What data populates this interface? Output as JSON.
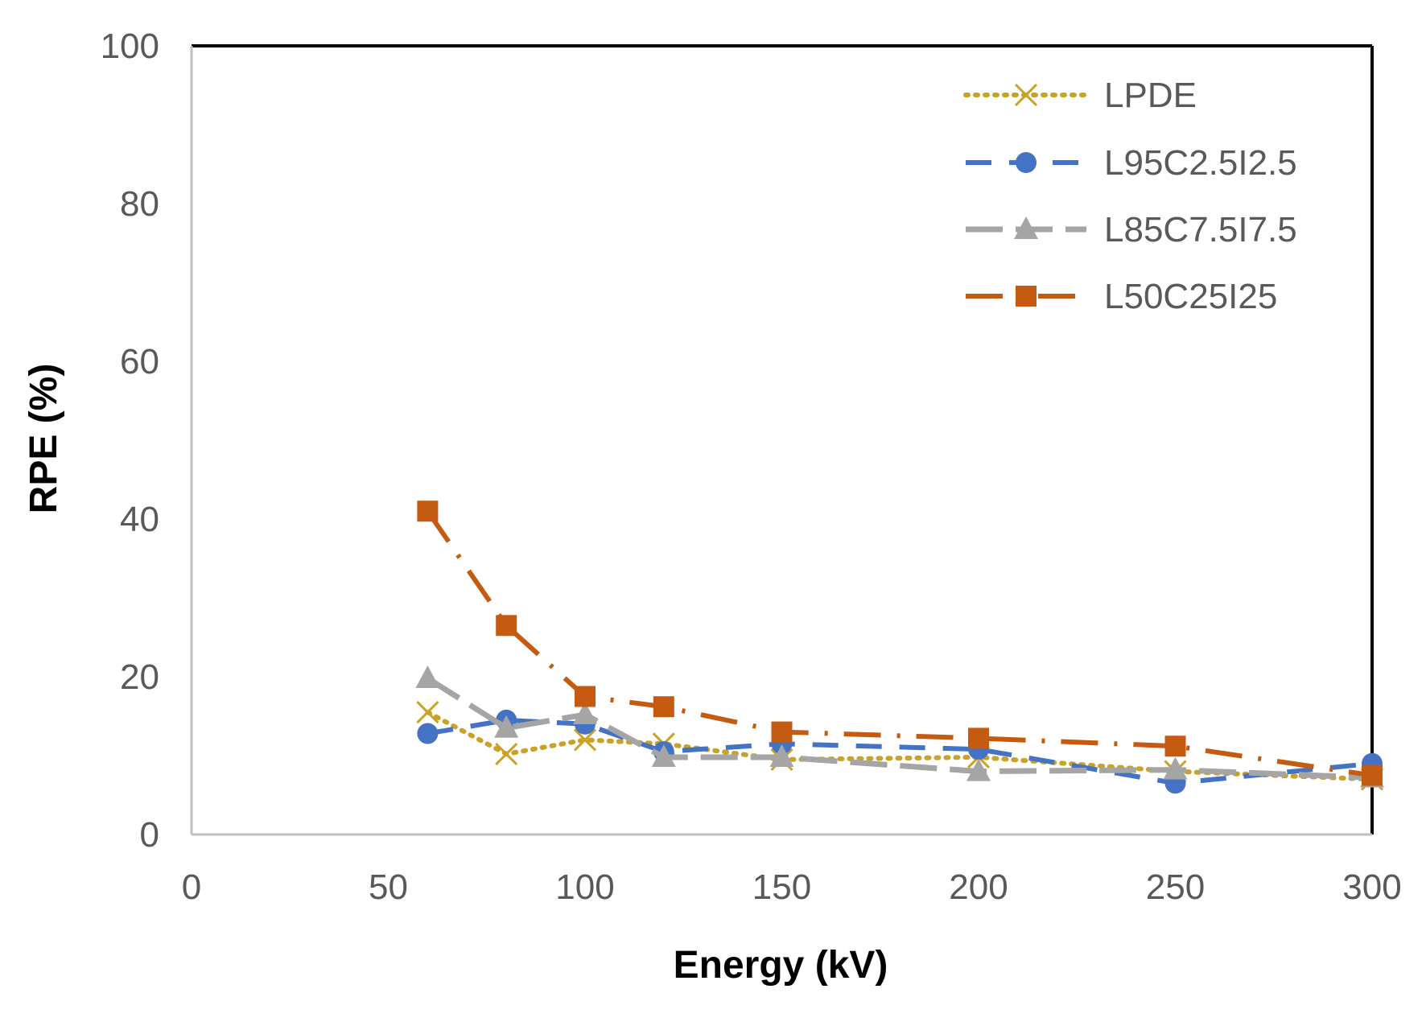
{
  "chart_data": {
    "type": "line",
    "xlabel": "Energy (kV)",
    "ylabel": "RPE (%)",
    "xlim": [
      0,
      300
    ],
    "ylim": [
      0,
      100
    ],
    "x_ticks": [
      0,
      50,
      100,
      150,
      200,
      250,
      300
    ],
    "y_ticks": [
      0,
      20,
      40,
      60,
      80,
      100
    ],
    "grid": false,
    "legend_position": "top-right",
    "x": [
      60,
      80,
      100,
      120,
      150,
      200,
      250,
      300
    ],
    "series": [
      {
        "name": "LPDE",
        "values": [
          15.5,
          10.2,
          12.0,
          11.5,
          9.5,
          9.8,
          8.0,
          7.0
        ],
        "color": "#C9A227",
        "line_style": "dotted",
        "marker": "x-icon"
      },
      {
        "name": "L95C2.5I2.5",
        "values": [
          12.8,
          14.5,
          14.0,
          10.5,
          11.5,
          10.8,
          6.5,
          9.0
        ],
        "color": "#4472C4",
        "line_style": "dashed",
        "marker": "circle-icon"
      },
      {
        "name": "L85C7.5I7.5",
        "values": [
          19.8,
          13.5,
          15.2,
          9.8,
          9.8,
          8.0,
          8.2,
          7.2
        ],
        "color": "#A5A5A5",
        "line_style": "long-dash",
        "marker": "triangle-icon"
      },
      {
        "name": "L50C25I25",
        "values": [
          41.0,
          26.5,
          17.5,
          16.2,
          13.0,
          12.2,
          11.2,
          7.5
        ],
        "color": "#C55A11",
        "line_style": "long-dash-dot",
        "marker": "square-icon"
      }
    ]
  }
}
